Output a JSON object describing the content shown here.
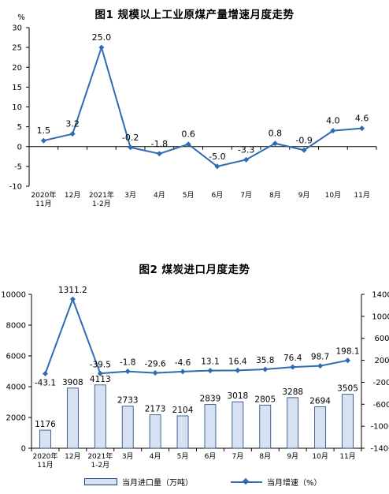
{
  "chart_data": [
    {
      "type": "line",
      "title": "图1  规模以上工业原煤产量增速月度走势",
      "ylabel": "%",
      "ylim": [
        -10,
        30
      ],
      "yticks": [
        -10,
        -5,
        0,
        5,
        10,
        15,
        20,
        25,
        30
      ],
      "categories": [
        "2020年\n11月",
        "12月",
        "2021年\n1-2月",
        "3月",
        "4月",
        "5月",
        "6月",
        "7月",
        "8月",
        "9月",
        "10月",
        "11月"
      ],
      "series": [
        {
          "values": [
            1.5,
            3.2,
            25.0,
            -0.2,
            -1.8,
            0.6,
            -5.0,
            -3.3,
            0.8,
            -0.9,
            4.0,
            4.6
          ],
          "labels": [
            "1.5",
            "3.2",
            "25.0",
            "-0.2",
            "-1.8",
            "0.6",
            "-5.0",
            "-3.3",
            "0.8",
            "-0.9",
            "4.0",
            "4.6"
          ]
        }
      ],
      "color": "#2e6bb3",
      "grid": false
    },
    {
      "type": "bar+line",
      "title": "图2  煤炭进口月度走势",
      "categories": [
        "2020年\n11月",
        "12月",
        "2021年\n1-2月",
        "3月",
        "4月",
        "5月",
        "6月",
        "7月",
        "8月",
        "9月",
        "10月",
        "11月"
      ],
      "ylim_left": [
        0,
        10000
      ],
      "yticks_left": [
        0,
        2000,
        4000,
        6000,
        8000,
        10000
      ],
      "ylim_right": [
        -1400,
        1400
      ],
      "yticks_right": [
        -1400,
        -1000,
        -600,
        -200,
        200,
        600,
        1000,
        1400
      ],
      "series": [
        {
          "name": "当月进口量（万吨）",
          "type": "bar",
          "axis": "left",
          "values": [
            1176,
            3908,
            4113,
            2733,
            2173,
            2104,
            2839,
            3018,
            2805,
            3288,
            2694,
            3505
          ],
          "labels": [
            "1176",
            "3908",
            "4113",
            "2733",
            "2173",
            "2104",
            "2839",
            "3018",
            "2805",
            "3288",
            "2694",
            "3505"
          ]
        },
        {
          "name": "当月增速（%）",
          "type": "line",
          "axis": "right",
          "values": [
            -43.1,
            1311.2,
            -39.5,
            -1.8,
            -29.6,
            -4.6,
            13.1,
            16.4,
            35.8,
            76.4,
            98.7,
            198.1
          ],
          "labels": [
            "-43.1",
            "1311.2",
            "-39.5",
            "-1.8",
            "-29.6",
            "-4.6",
            "13.1",
            "16.4",
            "35.8",
            "76.4",
            "98.7",
            "198.1"
          ]
        }
      ],
      "legend_position": "bottom",
      "bar_color": "#d6e2f2",
      "bar_border": "#1f3f7a",
      "line_color": "#2e6bb3",
      "grid": false
    }
  ]
}
